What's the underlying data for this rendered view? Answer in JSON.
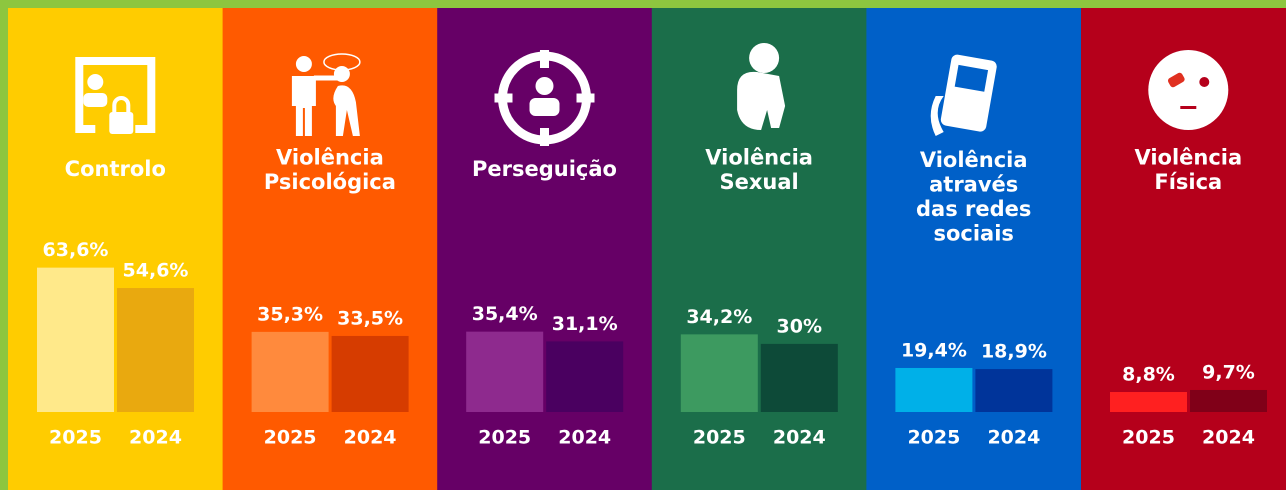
{
  "chart_data": [
    {
      "type": "bar",
      "title": [
        "Controlo"
      ],
      "categories": [
        "2025",
        "2024"
      ],
      "values": [
        63.6,
        54.6
      ],
      "value_labels": [
        "63,6%",
        "54,6%"
      ],
      "colors": [
        "#ffe98a",
        "#e9a90f"
      ],
      "background": "#ffcc00"
    },
    {
      "type": "bar",
      "title": [
        "Violência",
        "Psicológica"
      ],
      "categories": [
        "2025",
        "2024"
      ],
      "values": [
        35.3,
        33.5
      ],
      "value_labels": [
        "35,3%",
        "33,5%"
      ],
      "colors": [
        "#ff8a3d",
        "#d63c00"
      ],
      "background": "#ff5a00"
    },
    {
      "type": "bar",
      "title": [
        "Perseguição"
      ],
      "categories": [
        "2025",
        "2024"
      ],
      "values": [
        35.4,
        31.1
      ],
      "value_labels": [
        "35,4%",
        "31,1%"
      ],
      "colors": [
        "#8e2a8e",
        "#4a0060"
      ],
      "background": "#660066"
    },
    {
      "type": "bar",
      "title": [
        "Violência",
        "Sexual"
      ],
      "categories": [
        "2025",
        "2024"
      ],
      "values": [
        34.2,
        30
      ],
      "value_labels": [
        "34,2%",
        "30%"
      ],
      "colors": [
        "#3d9a60",
        "#0d4a38"
      ],
      "background": "#1b6e4a"
    },
    {
      "type": "bar",
      "title": [
        "Violência",
        "através",
        "das redes",
        "sociais"
      ],
      "categories": [
        "2025",
        "2024"
      ],
      "values": [
        19.4,
        18.9
      ],
      "value_labels": [
        "19,4%",
        "18,9%"
      ],
      "colors": [
        "#00b0e8",
        "#00349a"
      ],
      "background": "#0060c8"
    },
    {
      "type": "bar",
      "title": [
        "Violência",
        "Física"
      ],
      "categories": [
        "2025",
        "2024"
      ],
      "values": [
        8.8,
        9.7
      ],
      "value_labels": [
        "8,8%",
        "9,7%"
      ],
      "colors": [
        "#ff2020",
        "#800018"
      ],
      "background": "#b5001b"
    }
  ]
}
